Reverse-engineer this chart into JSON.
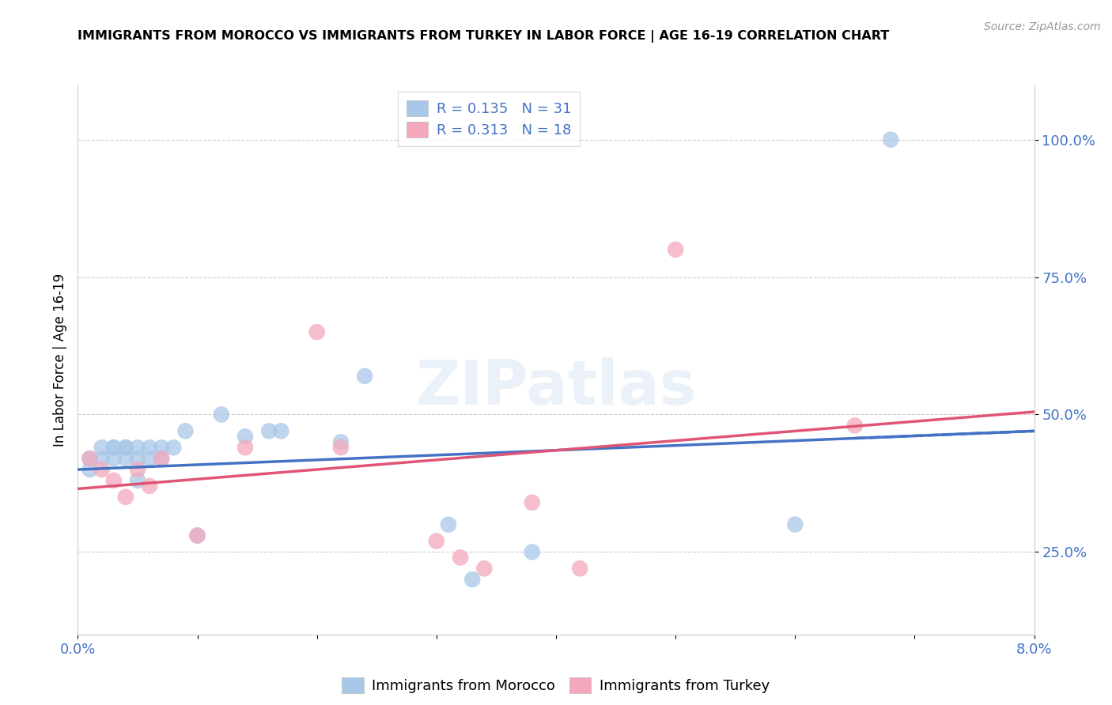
{
  "title": "IMMIGRANTS FROM MOROCCO VS IMMIGRANTS FROM TURKEY IN LABOR FORCE | AGE 16-19 CORRELATION CHART",
  "source": "Source: ZipAtlas.com",
  "ylabel": "In Labor Force | Age 16-19",
  "xlim": [
    0.0,
    0.08
  ],
  "ylim": [
    0.1,
    1.1
  ],
  "yticks": [
    0.25,
    0.5,
    0.75,
    1.0
  ],
  "ytick_labels": [
    "25.0%",
    "50.0%",
    "75.0%",
    "100.0%"
  ],
  "xticks": [
    0.0,
    0.01,
    0.02,
    0.03,
    0.04,
    0.05,
    0.06,
    0.07,
    0.08
  ],
  "xtick_labels": [
    "0.0%",
    "",
    "",
    "",
    "",
    "",
    "",
    "",
    "8.0%"
  ],
  "morocco_R": 0.135,
  "morocco_N": 31,
  "turkey_R": 0.313,
  "turkey_N": 18,
  "morocco_color": "#a8c8e8",
  "turkey_color": "#f4a8bc",
  "morocco_line_color": "#4472c4",
  "turkey_line_color": "#e05575",
  "legend_text_color": "#4472c4",
  "watermark": "ZIPatlas",
  "morocco_scatter_x": [
    0.001,
    0.001,
    0.002,
    0.002,
    0.003,
    0.003,
    0.003,
    0.004,
    0.004,
    0.004,
    0.005,
    0.005,
    0.005,
    0.006,
    0.006,
    0.007,
    0.007,
    0.008,
    0.009,
    0.01,
    0.012,
    0.014,
    0.016,
    0.017,
    0.022,
    0.024,
    0.031,
    0.033,
    0.038,
    0.06,
    0.068
  ],
  "morocco_scatter_y": [
    0.4,
    0.42,
    0.42,
    0.44,
    0.44,
    0.42,
    0.44,
    0.42,
    0.44,
    0.44,
    0.44,
    0.42,
    0.38,
    0.44,
    0.42,
    0.42,
    0.44,
    0.44,
    0.47,
    0.28,
    0.5,
    0.46,
    0.47,
    0.47,
    0.45,
    0.57,
    0.3,
    0.2,
    0.25,
    0.3,
    1.0
  ],
  "turkey_scatter_x": [
    0.001,
    0.002,
    0.003,
    0.004,
    0.005,
    0.006,
    0.007,
    0.01,
    0.014,
    0.02,
    0.022,
    0.03,
    0.032,
    0.034,
    0.038,
    0.042,
    0.05,
    0.065
  ],
  "turkey_scatter_y": [
    0.42,
    0.4,
    0.38,
    0.35,
    0.4,
    0.37,
    0.42,
    0.28,
    0.44,
    0.65,
    0.44,
    0.27,
    0.24,
    0.22,
    0.34,
    0.22,
    0.8,
    0.48
  ],
  "morocco_trend_x": [
    0.0,
    0.08
  ],
  "morocco_trend_y": [
    0.4,
    0.47
  ],
  "turkey_trend_x": [
    0.0,
    0.08
  ],
  "turkey_trend_y": [
    0.365,
    0.505
  ],
  "grid_color": "#cccccc",
  "spine_color": "#cccccc"
}
